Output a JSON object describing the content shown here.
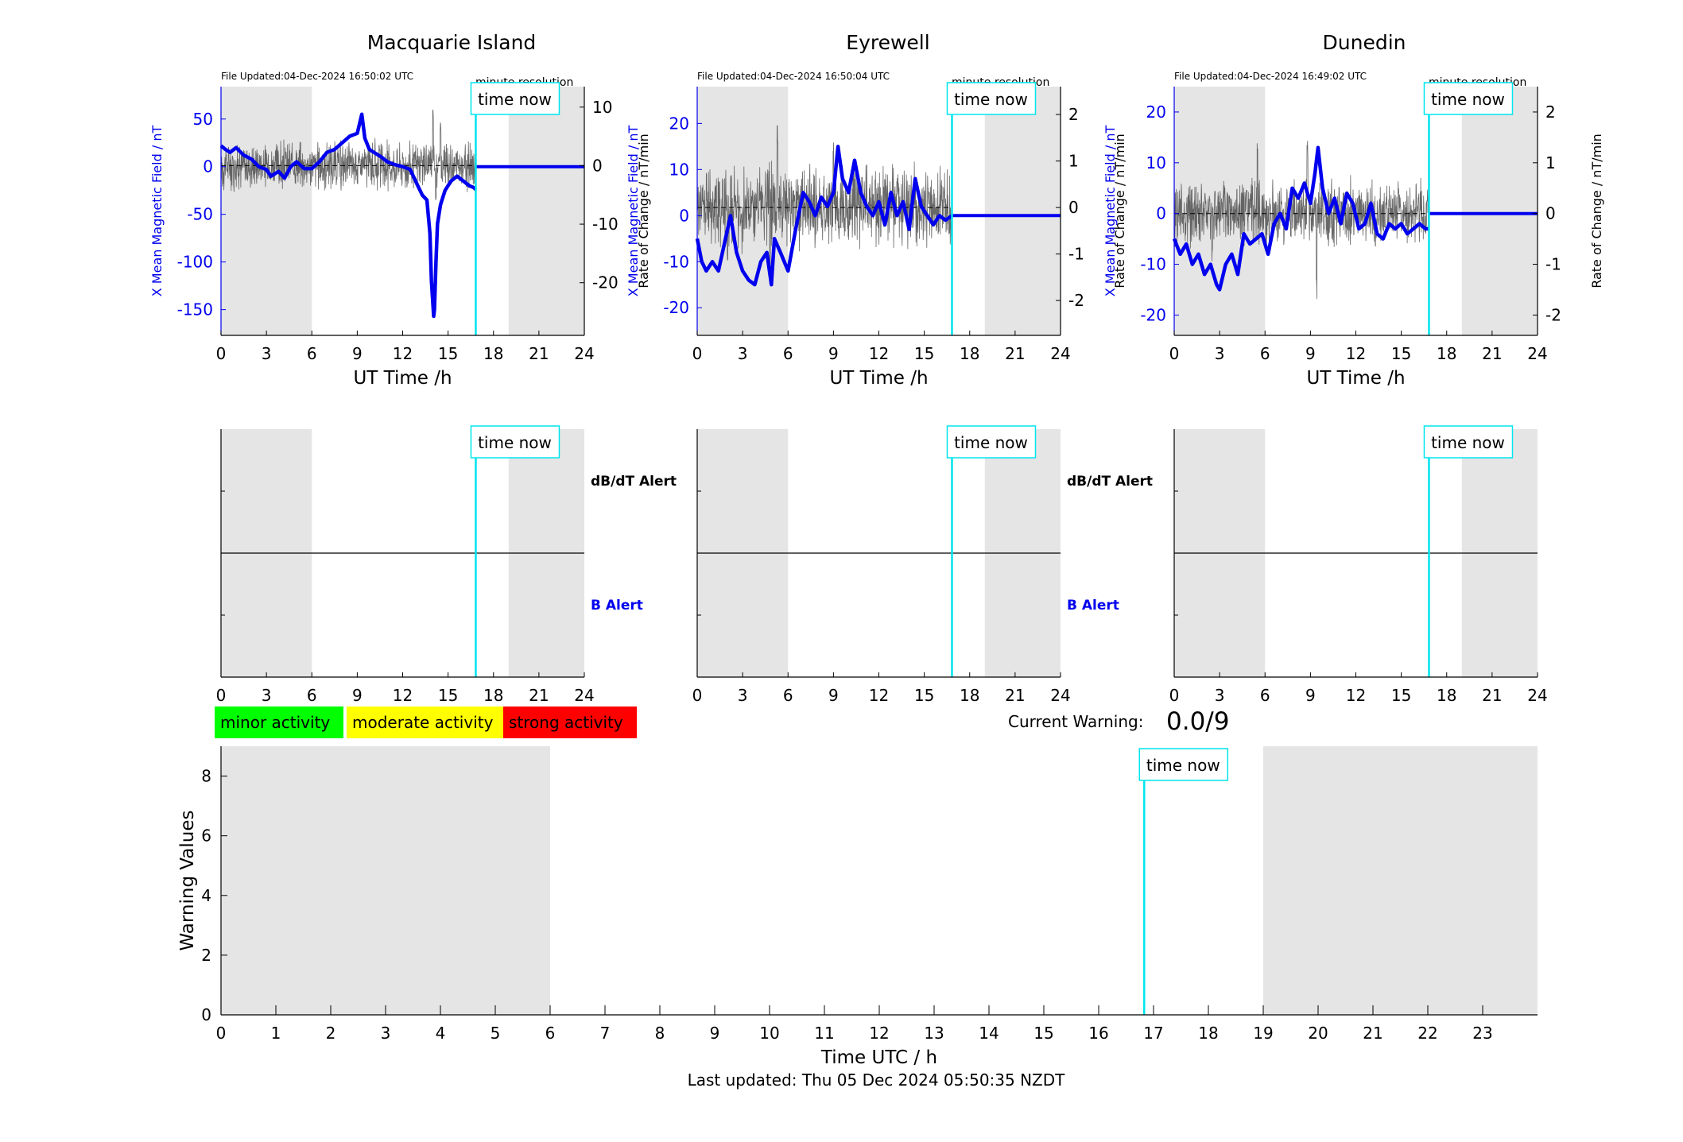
{
  "colors": {
    "field": "#0000ee",
    "rate": "#4d4d4d",
    "now": "#00e5ee",
    "shade": "#e5e5e5",
    "minor": "#00ff00",
    "moderate": "#ffff00",
    "strong": "#ff0000"
  },
  "labels": {
    "time_now": "time now",
    "minute_resolution": "minute resolution",
    "dbdt_alert": "dB/dT Alert",
    "b_alert": "B Alert",
    "current_warning_label": "Current Warning:",
    "current_warning_value": "0.0/9",
    "last_updated": "Last updated: Thu 05 Dec 2024 05:50:35 NZDT"
  },
  "legend": {
    "minor": "minor activity",
    "moderate": "moderate activity",
    "strong": "strong activity"
  },
  "chart_data": [
    {
      "type": "line",
      "title": "Macquarie Island",
      "file_updated": "File Updated:04-Dec-2024 16:50:02 UTC",
      "xlabel": "UT Time /h",
      "ylabel_left": "X Mean Magnetic Field / nT",
      "ylabel_right": "Rate of Change / nT/min",
      "xlim": [
        0,
        24
      ],
      "xticks": [
        0,
        3,
        6,
        9,
        12,
        15,
        18,
        21,
        24
      ],
      "ylim_left": [
        -177,
        84
      ],
      "yticks_left": [
        50,
        0,
        -50,
        -100,
        -150
      ],
      "ylim_right": [
        -29,
        13.5
      ],
      "yticks_right": [
        10,
        0,
        -10,
        -20
      ],
      "time_now_h": 16.83,
      "night_shading_h": [
        [
          0,
          6
        ],
        [
          19,
          24
        ]
      ],
      "rate_amplitude": 3.5,
      "rate_spikes": [
        [
          14.0,
          10
        ],
        [
          14.2,
          -6
        ],
        [
          14.5,
          8
        ],
        [
          14.6,
          -3
        ]
      ],
      "series": [
        {
          "name": "X Mean Magnetic Field",
          "x": [
            0,
            0.3,
            0.6,
            1.0,
            1.5,
            2.0,
            2.5,
            3.0,
            3.3,
            3.8,
            4.2,
            4.6,
            5.0,
            5.5,
            6.0,
            6.5,
            7.0,
            7.5,
            8.0,
            8.5,
            9.0,
            9.3,
            9.5,
            9.8,
            10.2,
            10.6,
            11.0,
            11.5,
            12.0,
            12.5,
            13.0,
            13.3,
            13.6,
            13.8,
            13.9,
            14.0,
            14.05,
            14.1,
            14.2,
            14.3,
            14.5,
            14.8,
            15.2,
            15.6,
            16.0,
            16.4,
            16.7,
            16.83
          ],
          "y": [
            22,
            18,
            15,
            20,
            12,
            8,
            0,
            -3,
            -10,
            -5,
            -12,
            0,
            5,
            -2,
            -2,
            5,
            15,
            18,
            25,
            32,
            35,
            55,
            30,
            18,
            14,
            10,
            5,
            2,
            0,
            -3,
            -20,
            -30,
            -35,
            -70,
            -120,
            -145,
            -157,
            -150,
            -100,
            -60,
            -40,
            -25,
            -15,
            -10,
            -15,
            -20,
            -22,
            -24
          ]
        },
        {
          "name": "Rate of Change",
          "values": "noise"
        }
      ]
    },
    {
      "type": "line",
      "title": "Eyrewell",
      "file_updated": "File Updated:04-Dec-2024 16:50:04 UTC",
      "xlabel": "UT Time /h",
      "ylabel_left": "X Mean Magnetic Field / nT",
      "ylabel_right": "Rate of Change / nT/min",
      "xlim": [
        0,
        24
      ],
      "xticks": [
        0,
        3,
        6,
        9,
        12,
        15,
        18,
        21,
        24
      ],
      "ylim_left": [
        -26,
        28
      ],
      "yticks_left": [
        20,
        10,
        0,
        -10,
        -20
      ],
      "ylim_right": [
        -2.75,
        2.6
      ],
      "yticks_right": [
        2,
        1,
        0,
        -1,
        -2
      ],
      "time_now_h": 16.83,
      "night_shading_h": [
        [
          0,
          6
        ],
        [
          19,
          24
        ]
      ],
      "rate_amplitude": 0.75,
      "rate_spikes": [
        [
          5.3,
          1.8
        ],
        [
          4.8,
          -1.6
        ],
        [
          9.0,
          1.6
        ],
        [
          2.0,
          -1.2
        ]
      ],
      "series": [
        {
          "name": "X Mean Magnetic Field",
          "x": [
            0,
            0.3,
            0.6,
            1.0,
            1.4,
            1.8,
            2.2,
            2.6,
            3.0,
            3.4,
            3.8,
            4.2,
            4.6,
            4.9,
            5.1,
            5.5,
            6.0,
            6.5,
            7.0,
            7.4,
            7.8,
            8.2,
            8.6,
            9.0,
            9.3,
            9.6,
            10.0,
            10.4,
            10.8,
            11.2,
            11.6,
            12.0,
            12.4,
            12.8,
            13.2,
            13.6,
            14.0,
            14.4,
            14.8,
            15.2,
            15.6,
            16.0,
            16.4,
            16.83
          ],
          "y": [
            -5,
            -10,
            -12,
            -10,
            -12,
            -6,
            0,
            -8,
            -12,
            -14,
            -15,
            -10,
            -8,
            -15,
            -5,
            -8,
            -12,
            -3,
            5,
            3,
            0,
            4,
            2,
            5,
            15,
            8,
            5,
            12,
            5,
            2,
            0,
            3,
            -2,
            5,
            0,
            3,
            -3,
            8,
            2,
            0,
            -2,
            0,
            -1,
            0
          ]
        },
        {
          "name": "Rate of Change",
          "values": "noise"
        }
      ]
    },
    {
      "type": "line",
      "title": "Dunedin",
      "file_updated": "File Updated:04-Dec-2024 16:49:02 UTC",
      "xlabel": "UT Time /h",
      "ylabel_left": "X Mean Magnetic Field / nT",
      "ylabel_right": "Rate of Change / nT/min",
      "xlim": [
        0,
        24
      ],
      "xticks": [
        0,
        3,
        6,
        9,
        12,
        15,
        18,
        21,
        24
      ],
      "ylim_left": [
        -24,
        25
      ],
      "yticks_left": [
        20,
        10,
        0,
        -10,
        -20
      ],
      "ylim_right": [
        -2.4,
        2.5
      ],
      "yticks_right": [
        2,
        1,
        0,
        -1,
        -2
      ],
      "time_now_h": 16.83,
      "night_shading_h": [
        [
          0,
          6
        ],
        [
          19,
          24
        ]
      ],
      "rate_amplitude": 0.55,
      "rate_spikes": [
        [
          9.4,
          -1.7
        ],
        [
          5.5,
          1.4
        ],
        [
          8.8,
          1.6
        ],
        [
          2.5,
          -1.0
        ]
      ],
      "series": [
        {
          "name": "X Mean Magnetic Field",
          "x": [
            0,
            0.4,
            0.8,
            1.2,
            1.6,
            2.0,
            2.4,
            2.8,
            3.0,
            3.4,
            3.8,
            4.2,
            4.6,
            5.0,
            5.4,
            5.8,
            6.2,
            6.6,
            7.0,
            7.4,
            7.8,
            8.2,
            8.6,
            9.0,
            9.3,
            9.5,
            9.8,
            10.2,
            10.6,
            11.0,
            11.4,
            11.8,
            12.2,
            12.6,
            13.0,
            13.4,
            13.8,
            14.2,
            14.6,
            15.0,
            15.4,
            15.8,
            16.2,
            16.6,
            16.83
          ],
          "y": [
            -5,
            -8,
            -6,
            -10,
            -8,
            -12,
            -10,
            -14,
            -15,
            -10,
            -8,
            -12,
            -4,
            -6,
            -5,
            -4,
            -8,
            -2,
            0,
            -3,
            5,
            3,
            6,
            2,
            8,
            13,
            5,
            0,
            3,
            -2,
            4,
            2,
            -3,
            -2,
            2,
            -4,
            -5,
            -2,
            -3,
            -2,
            -4,
            -3,
            -2,
            -3,
            -3
          ]
        },
        {
          "name": "Rate of Change",
          "values": "noise"
        }
      ]
    },
    {
      "type": "line",
      "panel": "alerts",
      "station": "Macquarie Island",
      "xlim": [
        0,
        24
      ],
      "xticks": [
        0,
        3,
        6,
        9,
        12,
        15,
        18,
        21,
        24
      ],
      "time_now_h": 16.83,
      "night_shading_h": [
        [
          0,
          6
        ],
        [
          19,
          24
        ]
      ]
    },
    {
      "type": "line",
      "panel": "alerts",
      "station": "Eyrewell",
      "xlim": [
        0,
        24
      ],
      "xticks": [
        0,
        3,
        6,
        9,
        12,
        15,
        18,
        21,
        24
      ],
      "time_now_h": 16.83,
      "night_shading_h": [
        [
          0,
          6
        ],
        [
          19,
          24
        ]
      ]
    },
    {
      "type": "line",
      "panel": "alerts",
      "station": "Dunedin",
      "xlim": [
        0,
        24
      ],
      "xticks": [
        0,
        3,
        6,
        9,
        12,
        15,
        18,
        21,
        24
      ],
      "time_now_h": 16.83,
      "night_shading_h": [
        [
          0,
          6
        ],
        [
          19,
          24
        ]
      ]
    },
    {
      "type": "bar",
      "panel": "warning",
      "xlabel": "Time UTC / h",
      "ylabel": "Warning Values",
      "xlim": [
        0,
        24
      ],
      "xticks": [
        0,
        1,
        2,
        3,
        4,
        5,
        6,
        7,
        8,
        9,
        10,
        11,
        12,
        13,
        14,
        15,
        16,
        17,
        18,
        19,
        20,
        21,
        22,
        23
      ],
      "ylim": [
        0,
        9
      ],
      "yticks": [
        0,
        2,
        4,
        6,
        8
      ],
      "time_now_h": 16.83,
      "night_shading_h": [
        [
          0,
          6
        ],
        [
          19,
          24
        ]
      ],
      "values": []
    }
  ]
}
